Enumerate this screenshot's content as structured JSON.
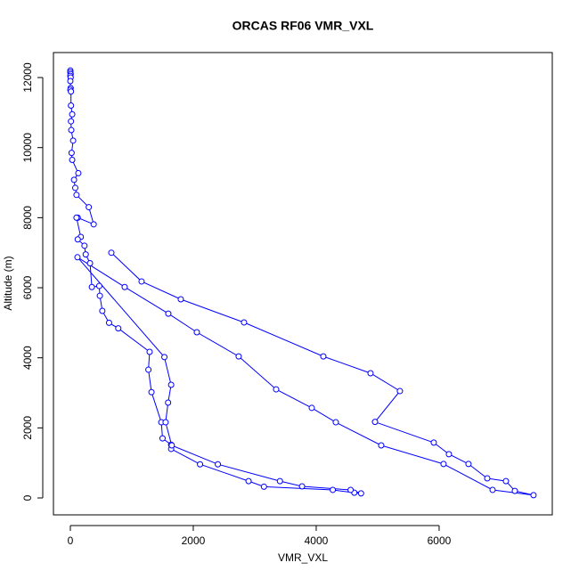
{
  "chart_data": {
    "type": "line",
    "title": "ORCAS RF06 VMR_VXL",
    "x_label": "VMR_VXL",
    "y_label": "Altitude (m)",
    "color": "#0000ff",
    "markers": "open-circle",
    "xlim": [
      -275,
      7841
    ],
    "ylim": [
      -483,
      12713
    ],
    "xticks": [
      0,
      2000,
      4000,
      6000
    ],
    "yticks": [
      0,
      2000,
      4000,
      6000,
      8000,
      10000,
      12000
    ],
    "series": [
      {
        "x": [
          0,
          0,
          5,
          0,
          5,
          0,
          5,
          0,
          10,
          10,
          30,
          10,
          15,
          45,
          20,
          30,
          130,
          60,
          80,
          100,
          300,
          380,
          120,
          100,
          170,
          120,
          230,
          250,
          320,
          350,
          470,
          480,
          520,
          630,
          780,
          1290,
          1270,
          1320,
          1480,
          1500,
          1640,
          1640,
          2110,
          2900,
          3150,
          4270,
          4620,
          4730,
          4560,
          3770,
          3410,
          2400,
          1650,
          1550,
          1590,
          1640,
          1530,
          116,
          884,
          1594,
          2058,
          2739,
          3348,
          3928,
          4319,
          5058,
          6072,
          6870,
          7536,
          7232,
          7087,
          6783,
          6478,
          6159,
          5913,
          4957,
          5362,
          4884,
          4116,
          2826,
          1797,
          1159,
          667
        ],
        "values": [
          12200,
          12150,
          12100,
          12050,
          12000,
          11900,
          11700,
          11650,
          11600,
          11200,
          10950,
          10750,
          10500,
          10200,
          9850,
          9650,
          9270,
          9080,
          8850,
          8650,
          8300,
          7810,
          8000,
          8000,
          7450,
          7380,
          7200,
          6950,
          6700,
          6020,
          6050,
          5770,
          5340,
          5000,
          4840,
          4170,
          3660,
          3020,
          2160,
          1700,
          1520,
          1400,
          960,
          480,
          320,
          230,
          150,
          130,
          230,
          330,
          480,
          960,
          1500,
          2160,
          2720,
          3230,
          4020,
          6870,
          6020,
          5260,
          4730,
          4040,
          3100,
          2570,
          2160,
          1500,
          970,
          230,
          80,
          200,
          480,
          560,
          970,
          1250,
          1580,
          2170,
          3050,
          3560,
          4040,
          5010,
          5670,
          6180,
          7000
        ]
      }
    ]
  }
}
